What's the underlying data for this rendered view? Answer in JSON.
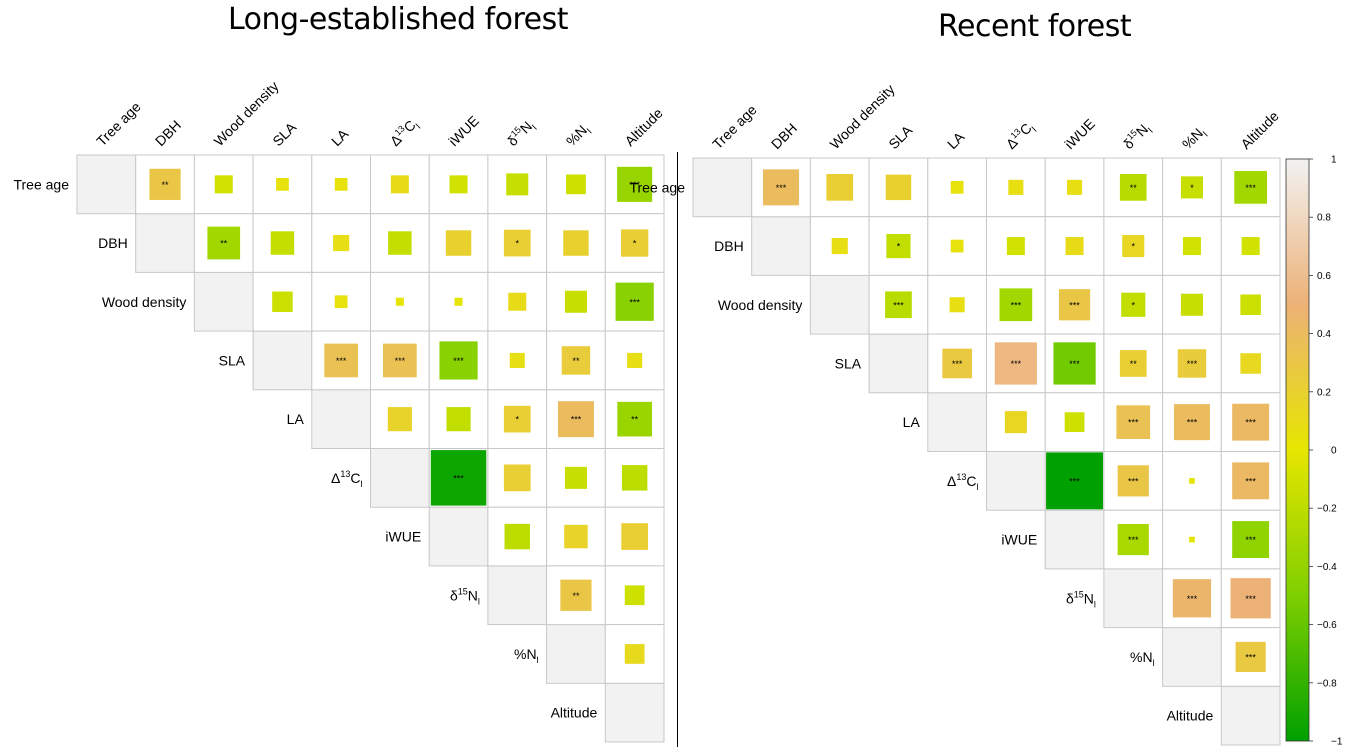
{
  "chart_data": [
    {
      "type": "heatmap",
      "title": "Long-established forest",
      "variables": [
        "Tree age",
        "DBH",
        "Wood density",
        "SLA",
        "LA",
        "Δ13Cl",
        "iWUE",
        "δ15Nl",
        "%Nl",
        "Altitude"
      ],
      "labels_rich": [
        {
          "base": "Tree age"
        },
        {
          "base": "DBH"
        },
        {
          "base": "Wood density"
        },
        {
          "base": "SLA"
        },
        {
          "base": "LA"
        },
        {
          "pre": "Δ",
          "sup": "13",
          "base": "C",
          "sub": "l"
        },
        {
          "base": "iWUE"
        },
        {
          "pre": "δ",
          "sup": "15",
          "base": "N",
          "sub": "l"
        },
        {
          "base": "%N",
          "sub": "l"
        },
        {
          "base": "Altitude"
        }
      ],
      "cells": [
        {
          "row": 0,
          "col": 1,
          "value": 0.3,
          "sig": "**"
        },
        {
          "row": 0,
          "col": 2,
          "value": -0.1,
          "sig": ""
        },
        {
          "row": 0,
          "col": 3,
          "value": 0.05,
          "sig": ""
        },
        {
          "row": 0,
          "col": 4,
          "value": 0.05,
          "sig": ""
        },
        {
          "row": 0,
          "col": 5,
          "value": 0.1,
          "sig": ""
        },
        {
          "row": 0,
          "col": 6,
          "value": -0.1,
          "sig": ""
        },
        {
          "row": 0,
          "col": 7,
          "value": -0.15,
          "sig": ""
        },
        {
          "row": 0,
          "col": 8,
          "value": -0.12,
          "sig": ""
        },
        {
          "row": 0,
          "col": 9,
          "value": -0.38,
          "sig": "***"
        },
        {
          "row": 1,
          "col": 2,
          "value": -0.33,
          "sig": "**"
        },
        {
          "row": 1,
          "col": 3,
          "value": -0.17,
          "sig": ""
        },
        {
          "row": 1,
          "col": 4,
          "value": 0.08,
          "sig": ""
        },
        {
          "row": 1,
          "col": 5,
          "value": -0.17,
          "sig": ""
        },
        {
          "row": 1,
          "col": 6,
          "value": 0.2,
          "sig": ""
        },
        {
          "row": 1,
          "col": 7,
          "value": 0.22,
          "sig": "*"
        },
        {
          "row": 1,
          "col": 8,
          "value": 0.2,
          "sig": ""
        },
        {
          "row": 1,
          "col": 9,
          "value": 0.23,
          "sig": "*"
        },
        {
          "row": 2,
          "col": 3,
          "value": -0.13,
          "sig": ""
        },
        {
          "row": 2,
          "col": 4,
          "value": 0.05,
          "sig": ""
        },
        {
          "row": 2,
          "col": 5,
          "value": 0.02,
          "sig": ""
        },
        {
          "row": 2,
          "col": 6,
          "value": 0.02,
          "sig": ""
        },
        {
          "row": 2,
          "col": 7,
          "value": 0.1,
          "sig": ""
        },
        {
          "row": 2,
          "col": 8,
          "value": -0.15,
          "sig": ""
        },
        {
          "row": 2,
          "col": 9,
          "value": -0.45,
          "sig": "***"
        },
        {
          "row": 3,
          "col": 4,
          "value": 0.35,
          "sig": "***"
        },
        {
          "row": 3,
          "col": 5,
          "value": 0.35,
          "sig": "***"
        },
        {
          "row": 3,
          "col": 6,
          "value": -0.45,
          "sig": "***"
        },
        {
          "row": 3,
          "col": 7,
          "value": 0.07,
          "sig": ""
        },
        {
          "row": 3,
          "col": 8,
          "value": 0.25,
          "sig": "**"
        },
        {
          "row": 3,
          "col": 9,
          "value": 0.07,
          "sig": ""
        },
        {
          "row": 4,
          "col": 5,
          "value": 0.18,
          "sig": ""
        },
        {
          "row": 4,
          "col": 6,
          "value": -0.18,
          "sig": ""
        },
        {
          "row": 4,
          "col": 7,
          "value": 0.22,
          "sig": "*"
        },
        {
          "row": 4,
          "col": 8,
          "value": 0.4,
          "sig": "***"
        },
        {
          "row": 4,
          "col": 9,
          "value": -0.37,
          "sig": "**"
        },
        {
          "row": 5,
          "col": 6,
          "value": -0.95,
          "sig": "***"
        },
        {
          "row": 5,
          "col": 7,
          "value": 0.22,
          "sig": ""
        },
        {
          "row": 5,
          "col": 8,
          "value": -0.15,
          "sig": ""
        },
        {
          "row": 5,
          "col": 9,
          "value": -0.2,
          "sig": ""
        },
        {
          "row": 6,
          "col": 7,
          "value": -0.2,
          "sig": ""
        },
        {
          "row": 6,
          "col": 8,
          "value": 0.17,
          "sig": ""
        },
        {
          "row": 6,
          "col": 9,
          "value": 0.22,
          "sig": ""
        },
        {
          "row": 7,
          "col": 8,
          "value": 0.3,
          "sig": "**"
        },
        {
          "row": 7,
          "col": 9,
          "value": -0.12,
          "sig": ""
        },
        {
          "row": 8,
          "col": 9,
          "value": 0.12,
          "sig": ""
        }
      ]
    },
    {
      "type": "heatmap",
      "title": "Recent forest",
      "variables": [
        "Tree age",
        "DBH",
        "Wood density",
        "SLA",
        "LA",
        "Δ13Cl",
        "iWUE",
        "δ15Nl",
        "%Nl",
        "Altitude"
      ],
      "labels_rich": [
        {
          "base": "Tree age"
        },
        {
          "base": "DBH"
        },
        {
          "base": "Wood density"
        },
        {
          "base": "SLA"
        },
        {
          "base": "LA"
        },
        {
          "pre": "Δ",
          "sup": "13",
          "base": "C",
          "sub": "l"
        },
        {
          "base": "iWUE"
        },
        {
          "pre": "δ",
          "sup": "15",
          "base": "N",
          "sub": "l"
        },
        {
          "base": "%N",
          "sub": "l"
        },
        {
          "base": "Altitude"
        }
      ],
      "cells": [
        {
          "row": 0,
          "col": 1,
          "value": 0.4,
          "sig": "***"
        },
        {
          "row": 0,
          "col": 2,
          "value": 0.22,
          "sig": ""
        },
        {
          "row": 0,
          "col": 3,
          "value": 0.2,
          "sig": ""
        },
        {
          "row": 0,
          "col": 4,
          "value": 0.05,
          "sig": ""
        },
        {
          "row": 0,
          "col": 5,
          "value": 0.07,
          "sig": ""
        },
        {
          "row": 0,
          "col": 6,
          "value": 0.07,
          "sig": ""
        },
        {
          "row": 0,
          "col": 7,
          "value": -0.22,
          "sig": "**"
        },
        {
          "row": 0,
          "col": 8,
          "value": -0.15,
          "sig": "*"
        },
        {
          "row": 0,
          "col": 9,
          "value": -0.33,
          "sig": "***"
        },
        {
          "row": 1,
          "col": 2,
          "value": 0.08,
          "sig": ""
        },
        {
          "row": 1,
          "col": 3,
          "value": -0.18,
          "sig": "*"
        },
        {
          "row": 1,
          "col": 4,
          "value": 0.05,
          "sig": ""
        },
        {
          "row": 1,
          "col": 5,
          "value": -0.1,
          "sig": ""
        },
        {
          "row": 1,
          "col": 6,
          "value": 0.1,
          "sig": ""
        },
        {
          "row": 1,
          "col": 7,
          "value": 0.15,
          "sig": "*"
        },
        {
          "row": 1,
          "col": 8,
          "value": -0.1,
          "sig": ""
        },
        {
          "row": 1,
          "col": 9,
          "value": -0.1,
          "sig": ""
        },
        {
          "row": 2,
          "col": 3,
          "value": -0.22,
          "sig": "***"
        },
        {
          "row": 2,
          "col": 4,
          "value": 0.07,
          "sig": ""
        },
        {
          "row": 2,
          "col": 5,
          "value": -0.33,
          "sig": "***"
        },
        {
          "row": 2,
          "col": 6,
          "value": 0.3,
          "sig": "***"
        },
        {
          "row": 2,
          "col": 7,
          "value": -0.18,
          "sig": "*"
        },
        {
          "row": 2,
          "col": 8,
          "value": -0.15,
          "sig": ""
        },
        {
          "row": 2,
          "col": 9,
          "value": -0.13,
          "sig": ""
        },
        {
          "row": 3,
          "col": 4,
          "value": 0.27,
          "sig": "***"
        },
        {
          "row": 3,
          "col": 5,
          "value": 0.55,
          "sig": "***"
        },
        {
          "row": 3,
          "col": 6,
          "value": -0.55,
          "sig": "***"
        },
        {
          "row": 3,
          "col": 7,
          "value": 0.22,
          "sig": "**"
        },
        {
          "row": 3,
          "col": 8,
          "value": 0.25,
          "sig": "***"
        },
        {
          "row": 3,
          "col": 9,
          "value": 0.13,
          "sig": ""
        },
        {
          "row": 4,
          "col": 5,
          "value": 0.15,
          "sig": ""
        },
        {
          "row": 4,
          "col": 6,
          "value": -0.12,
          "sig": ""
        },
        {
          "row": 4,
          "col": 7,
          "value": 0.35,
          "sig": "***"
        },
        {
          "row": 4,
          "col": 8,
          "value": 0.4,
          "sig": "***"
        },
        {
          "row": 4,
          "col": 9,
          "value": 0.42,
          "sig": "***"
        },
        {
          "row": 5,
          "col": 6,
          "value": -1.0,
          "sig": "***"
        },
        {
          "row": 5,
          "col": 7,
          "value": 0.3,
          "sig": "***"
        },
        {
          "row": 5,
          "col": 8,
          "value": 0.01,
          "sig": ""
        },
        {
          "row": 5,
          "col": 9,
          "value": 0.42,
          "sig": "***"
        },
        {
          "row": 6,
          "col": 7,
          "value": -0.3,
          "sig": "***"
        },
        {
          "row": 6,
          "col": 8,
          "value": 0.01,
          "sig": ""
        },
        {
          "row": 6,
          "col": 9,
          "value": -0.42,
          "sig": "***"
        },
        {
          "row": 7,
          "col": 8,
          "value": 0.45,
          "sig": "***"
        },
        {
          "row": 7,
          "col": 9,
          "value": 0.5,
          "sig": "***"
        },
        {
          "row": 8,
          "col": 9,
          "value": 0.28,
          "sig": "***"
        }
      ]
    }
  ],
  "colorbar": {
    "ticks": [
      "1",
      "0.8",
      "0.6",
      "0.4",
      "0.2",
      "0",
      "−0.2",
      "−0.4",
      "−0.6",
      "−0.8",
      "−1"
    ],
    "range": [
      -1,
      1
    ],
    "colors": {
      "neg1": "#00a000",
      "neg05": "#7fcf00",
      "zero": "#e6e600",
      "pos05": "#ecb176",
      "pos1": "#f2f2f2"
    }
  },
  "style": {
    "diagonal_fill": "#f2f2f2",
    "grid_stroke": "#c8c8c8",
    "divider_color": "#000000"
  }
}
